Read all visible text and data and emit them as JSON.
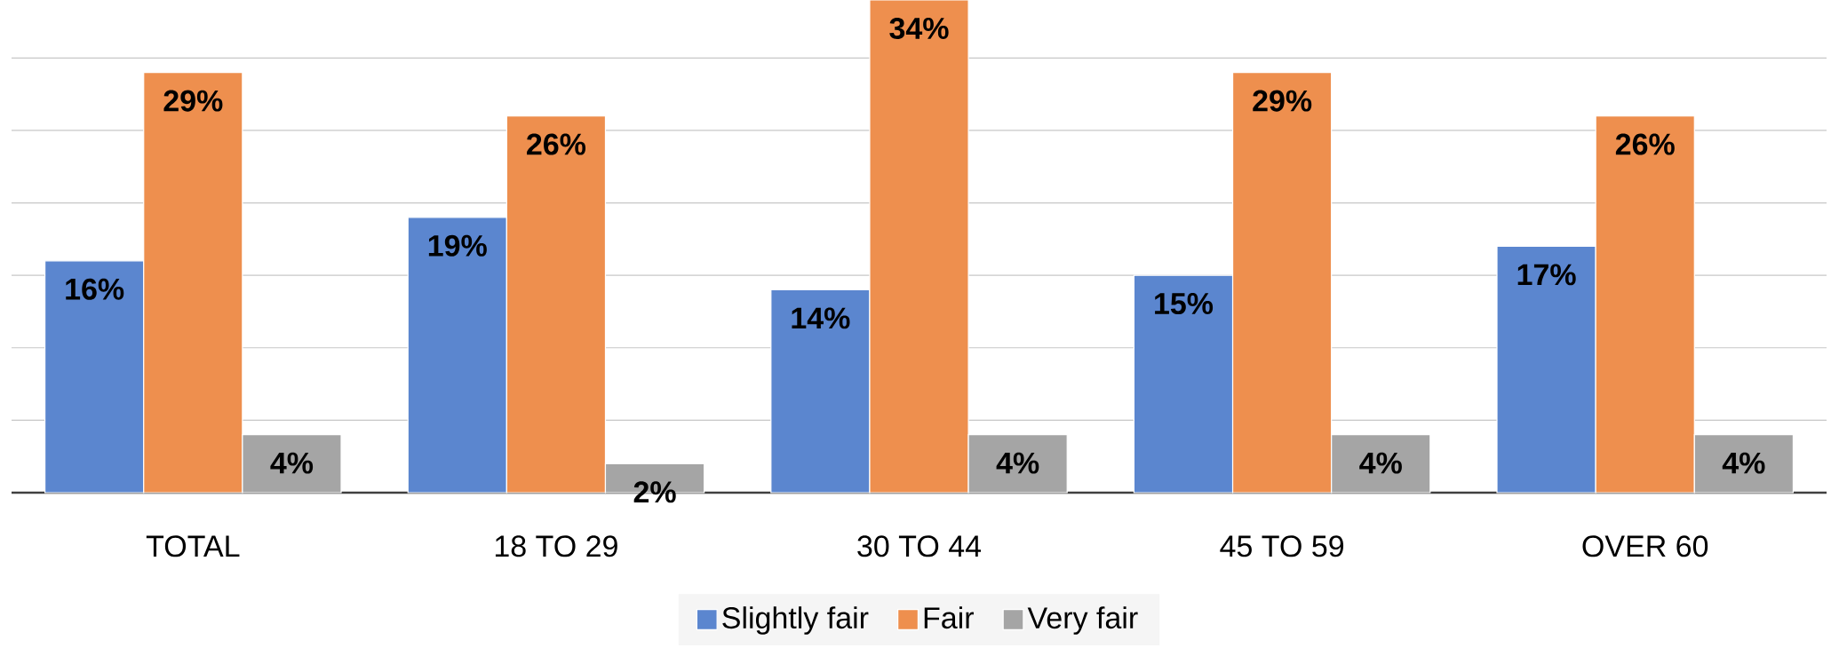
{
  "chart_data": {
    "type": "bar",
    "categories": [
      "TOTAL",
      "18 TO 29",
      "30 TO 44",
      "45 TO 59",
      "OVER 60"
    ],
    "series": [
      {
        "name": "Slightly fair",
        "color": "#5b86cf",
        "values": [
          16,
          19,
          14,
          15,
          17
        ],
        "value_labels": [
          "16%",
          "19%",
          "14%",
          "15%",
          "17%"
        ]
      },
      {
        "name": "Fair",
        "color": "#ee8f4e",
        "values": [
          29,
          26,
          34,
          29,
          26
        ],
        "value_labels": [
          "29%",
          "26%",
          "34%",
          "29%",
          "26%"
        ]
      },
      {
        "name": "Very fair",
        "color": "#a5a5a5",
        "values": [
          4,
          2,
          4,
          4,
          4
        ],
        "value_labels": [
          "4%",
          "2%",
          "4%",
          "4%",
          "4%"
        ]
      }
    ],
    "ylim": [
      0,
      34
    ],
    "grid": "y",
    "legend": "bottom",
    "tick_labels": "x"
  }
}
